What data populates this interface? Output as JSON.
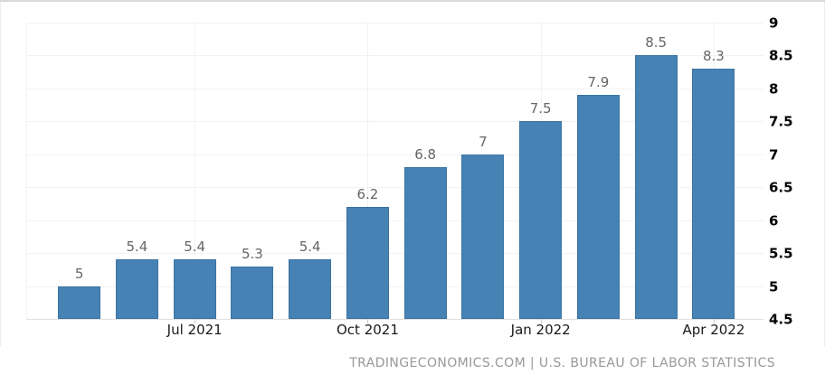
{
  "chart_data": {
    "type": "bar",
    "title": "",
    "xlabel": "",
    "ylabel": "",
    "values": [
      5,
      5.4,
      5.4,
      5.3,
      5.4,
      6.2,
      6.8,
      7,
      7.5,
      7.9,
      8.5,
      8.3
    ],
    "bar_labels": [
      "5",
      "5.4",
      "5.4",
      "5.3",
      "5.4",
      "6.2",
      "6.8",
      "7",
      "7.5",
      "7.9",
      "8.5",
      "8.3"
    ],
    "x_ticks": [
      {
        "index": 2,
        "label": "Jul 2021"
      },
      {
        "index": 5,
        "label": "Oct 2021"
      },
      {
        "index": 8,
        "label": "Jan 2022"
      },
      {
        "index": 11,
        "label": "Apr 2022"
      }
    ],
    "unlabeled_gridline_indices": [
      -1
    ],
    "y_tick_labels": [
      "9",
      "8.5",
      "8",
      "7.5",
      "7",
      "6.5",
      "6",
      "5.5",
      "5",
      "4.5"
    ],
    "ylim": [
      4.5,
      9
    ],
    "grid": true,
    "legend_position": "none",
    "colors": {
      "bar_fill": "#4682b4",
      "bar_border": "#3b73a2",
      "value_label": "#666666",
      "y_axis_text": "#000000",
      "x_axis_text": "#1a1a1a"
    }
  },
  "footer": {
    "attribution": "TRADINGECONOMICS.COM | U.S. BUREAU OF LABOR STATISTICS"
  }
}
